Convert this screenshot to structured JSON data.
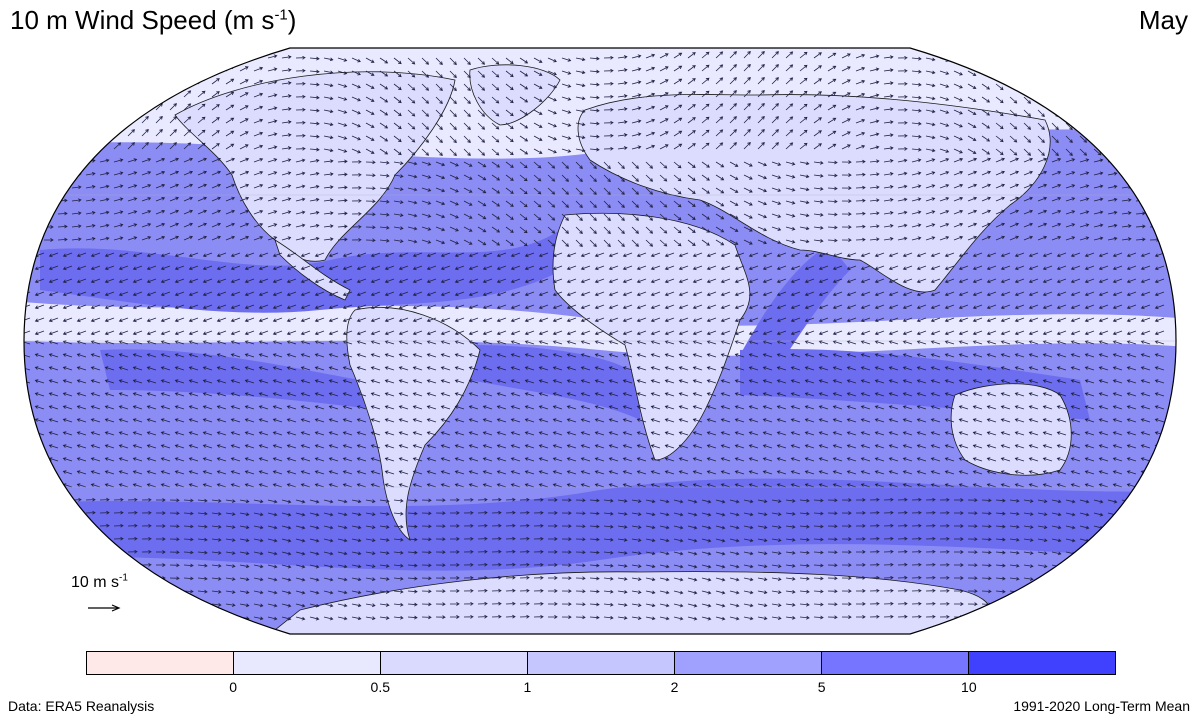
{
  "header": {
    "title_main": "10 m Wind Speed (m s",
    "title_sup": "-1",
    "title_close": ")",
    "month": "May"
  },
  "reference_vector": {
    "label_main": "10 m s",
    "label_sup": "-1"
  },
  "legend": {
    "colors": [
      "#ffe8e8",
      "#e8e8ff",
      "#dadaff",
      "#c6c6ff",
      "#a0a0ff",
      "#7575ff",
      "#4040ff"
    ],
    "ticks": [
      "0",
      "0.5",
      "1",
      "2",
      "5",
      "10"
    ]
  },
  "map": {
    "ocean_color": "#8c8cf5",
    "strong_wind_color": "#6d6df0",
    "land_color": "#dcdcff",
    "calm_color": "#e9e9ff",
    "coast_color": "#1a1a1a",
    "arrow_color": "#222244"
  },
  "footer": {
    "source": "Data: ERA5 Reanalysis",
    "period": "1991-2020 Long-Term Mean"
  }
}
